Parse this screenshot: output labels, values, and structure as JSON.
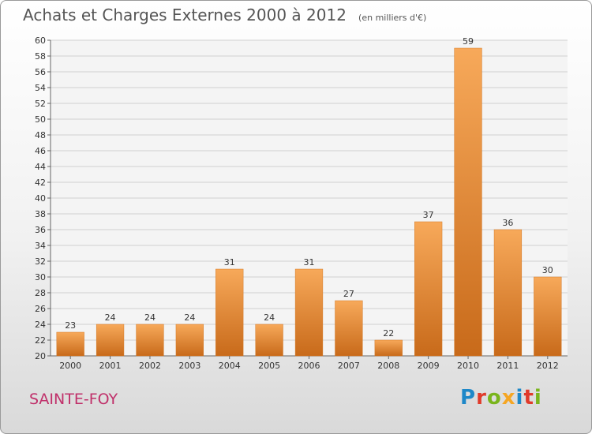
{
  "header": {
    "title": "Achats et Charges Externes 2000 à 2012",
    "unit": "(en milliers d'€)"
  },
  "footer": {
    "commune": "SAINTE-FOY",
    "logo": [
      "P",
      "r",
      "o",
      "x",
      "i",
      "t",
      "i"
    ],
    "logo_colors": [
      "#1e88c8",
      "#e03a2a",
      "#7ab51d",
      "#f5a623",
      "#1e88c8",
      "#e03a2a",
      "#7ab51d"
    ]
  },
  "colors": {
    "bar_light": "#f7a95a",
    "bar_dark": "#c86a1a",
    "grid": "#cfcfcf"
  },
  "chart_data": {
    "type": "bar",
    "title": "Achats et Charges Externes 2000 à 2012",
    "categories": [
      "2000",
      "2001",
      "2002",
      "2003",
      "2004",
      "2005",
      "2006",
      "2007",
      "2008",
      "2009",
      "2010",
      "2011",
      "2012"
    ],
    "values": [
      23,
      24,
      24,
      24,
      31,
      24,
      31,
      27,
      22,
      37,
      59,
      36,
      30
    ],
    "ylim": [
      20,
      60
    ],
    "yticks": [
      20,
      22,
      24,
      26,
      28,
      30,
      32,
      34,
      36,
      38,
      40,
      42,
      44,
      46,
      48,
      50,
      52,
      54,
      56,
      58,
      60
    ],
    "grid": true,
    "data_labels": true
  }
}
